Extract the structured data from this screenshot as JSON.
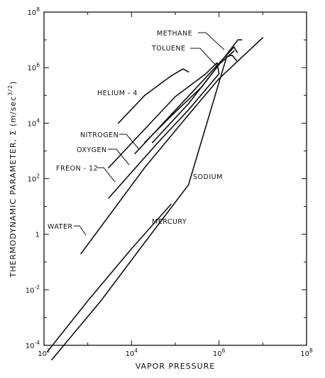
{
  "chart_data": {
    "type": "line",
    "xlabel": "VAPOR PRESSURE",
    "ylabel": "THERMODYNAMIC PARAMETER, Σ (m/sec^3/2)",
    "x_scale": "log",
    "y_scale": "log",
    "xlim": [
      100,
      100000000
    ],
    "ylim": [
      0.0001,
      100000000
    ],
    "x_ticks": [
      {
        "value": 100,
        "label": "10^2"
      },
      {
        "value": 10000,
        "label": "10^4"
      },
      {
        "value": 1000000,
        "label": "10^6"
      },
      {
        "value": 100000000,
        "label": "10^8"
      }
    ],
    "y_ticks": [
      {
        "value": 0.0001,
        "label": "10^-4"
      },
      {
        "value": 0.01,
        "label": "10^-2"
      },
      {
        "value": 1,
        "label": "1"
      },
      {
        "value": 100,
        "label": "10^2"
      },
      {
        "value": 10000,
        "label": "10^4"
      },
      {
        "value": 1000000,
        "label": "10^6"
      },
      {
        "value": 100000000,
        "label": "10^8"
      }
    ],
    "grid": false,
    "legend": "none (curves labeled directly)",
    "series": [
      {
        "name": "HELIUM - 4",
        "x": [
          5000,
          20000,
          80000,
          150000,
          200000
        ],
        "y": [
          10000,
          100000,
          500000,
          900000,
          700000
        ]
      },
      {
        "name": "METHANE",
        "x": [
          20000,
          80000,
          400000,
          1500000,
          2700000,
          3300000
        ],
        "y": [
          2000,
          18000,
          200000,
          3000000,
          10000000,
          10000000
        ]
      },
      {
        "name": "TOLUENE",
        "x": [
          30000,
          200000,
          1000000,
          2200000
        ],
        "y": [
          2000,
          50000,
          1300000,
          4000000
        ]
      },
      {
        "name": "NITROGEN",
        "x": [
          12000,
          80000,
          400000,
          2200000,
          2600000
        ],
        "y": [
          800,
          20000,
          300000,
          5500000,
          3500000
        ]
      },
      {
        "name": "OXYGEN",
        "x": [
          3000,
          100000,
          500000,
          900000,
          1000000
        ],
        "y": [
          250,
          90000,
          600000,
          1500000,
          600000
        ]
      },
      {
        "name": "FREON - 12",
        "x": [
          3000,
          40000,
          200000,
          1000000
        ],
        "y": [
          20,
          2000,
          30000,
          600000
        ]
      },
      {
        "name": "WATER",
        "x": [
          700,
          20000,
          200000,
          1000000,
          10000000
        ],
        "y": [
          0.2,
          250,
          20000,
          400000,
          12000000
        ]
      },
      {
        "name": "MERCURY",
        "x": [
          120,
          1000,
          10000,
          80000
        ],
        "y": [
          6e-05,
          0.004,
          0.3,
          12
        ]
      },
      {
        "name": "SODIUM",
        "x": [
          150,
          2000,
          20000,
          200000,
          1500000,
          2000000,
          2500000
        ],
        "y": [
          3e-05,
          0.004,
          0.5,
          60,
          2500000,
          2800000,
          1800000
        ]
      }
    ]
  }
}
